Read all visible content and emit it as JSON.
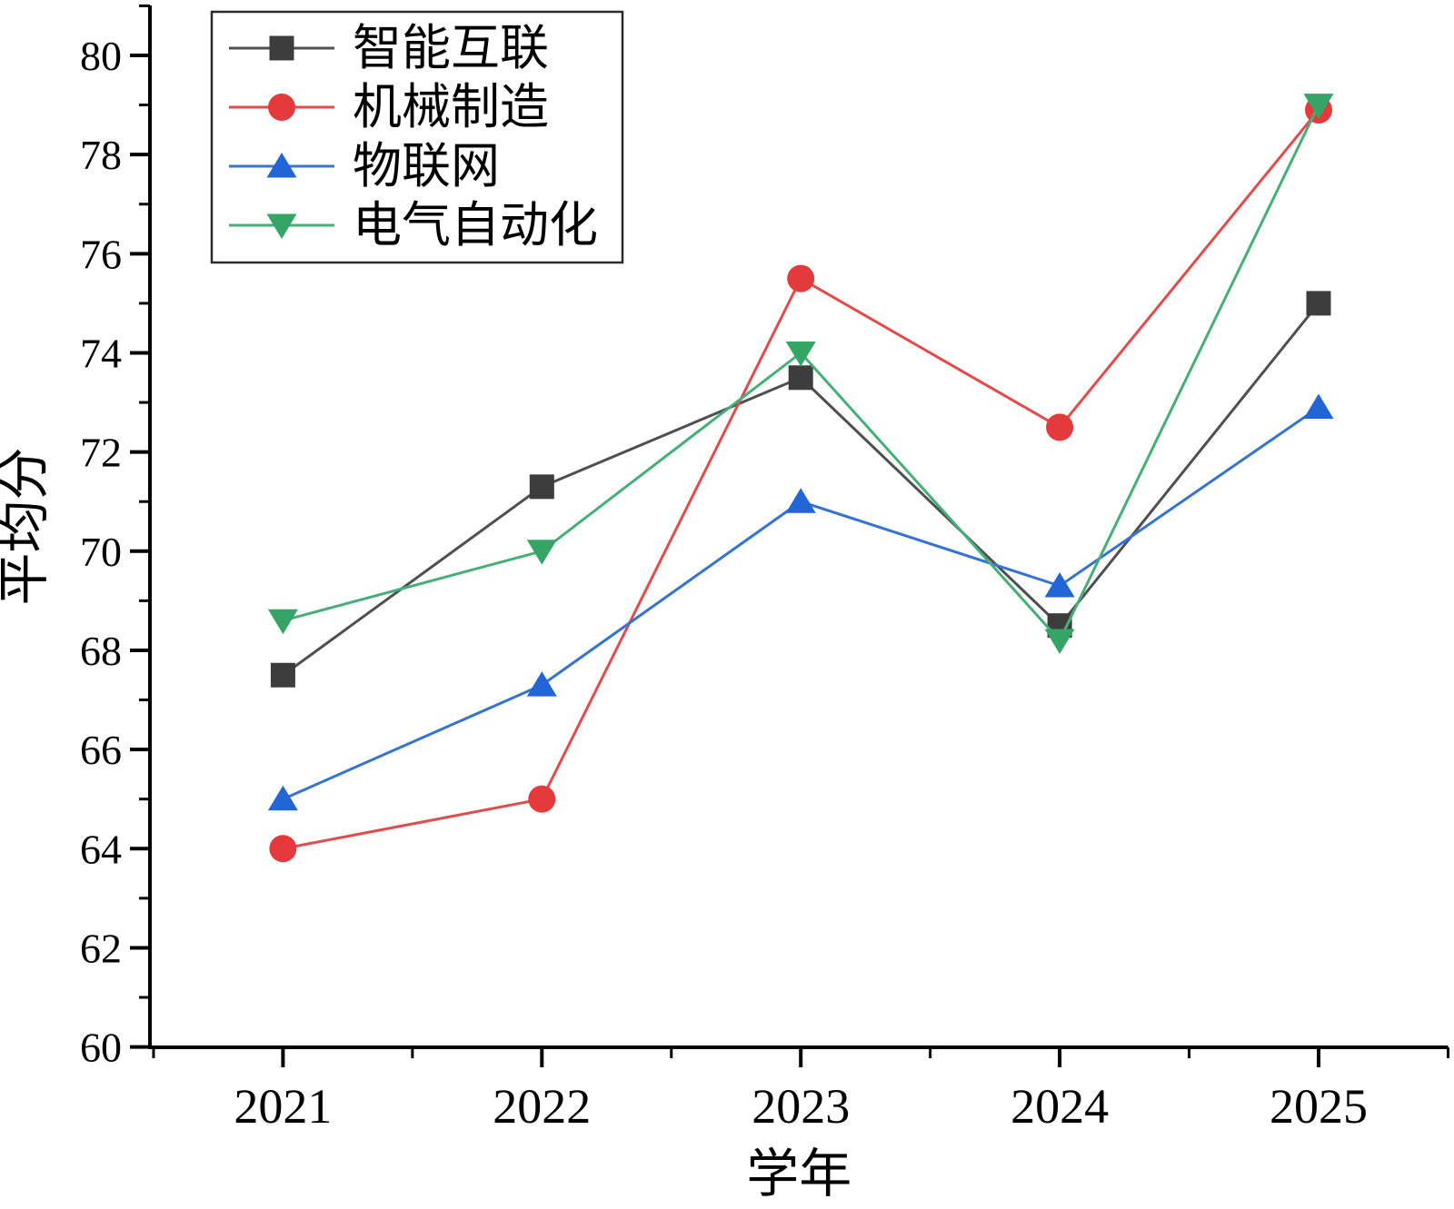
{
  "chart_data": {
    "type": "line",
    "title": "",
    "xlabel": "学年",
    "ylabel": "平均分",
    "x": [
      2021,
      2022,
      2023,
      2024,
      2025
    ],
    "xlim": [
      2020.5,
      2025.5
    ],
    "ylim": [
      60,
      81
    ],
    "y_major_ticks": [
      60,
      62,
      64,
      66,
      68,
      70,
      72,
      74,
      76,
      78,
      80
    ],
    "y_minor_ticks": [
      61,
      63,
      65,
      67,
      69,
      71,
      73,
      75,
      77,
      79,
      81
    ],
    "x_minor_ticks": [
      2020.5,
      2021.5,
      2022.5,
      2023.5,
      2024.5,
      2025.5
    ],
    "grid": false,
    "legend_position": "upper-left",
    "axis_color": "#000000",
    "series": [
      {
        "name": "智能互联",
        "marker": "square",
        "color": "#3d3d3d",
        "line_color": "#4f4f4f",
        "values": [
          67.5,
          71.3,
          73.5,
          68.5,
          75.0
        ]
      },
      {
        "name": "机械制造",
        "marker": "circle",
        "color": "#e53a3c",
        "line_color": "#e34b4b",
        "values": [
          64.0,
          65.0,
          75.5,
          72.5,
          78.9
        ]
      },
      {
        "name": "物联网",
        "marker": "triangle-up",
        "color": "#2165d6",
        "line_color": "#3573d2",
        "values": [
          65.0,
          67.3,
          71.0,
          69.3,
          72.9
        ]
      },
      {
        "name": "电气自动化",
        "marker": "triangle-down",
        "color": "#35a566",
        "line_color": "#46ae77",
        "values": [
          68.6,
          70.0,
          74.0,
          68.2,
          79.0
        ]
      }
    ]
  }
}
